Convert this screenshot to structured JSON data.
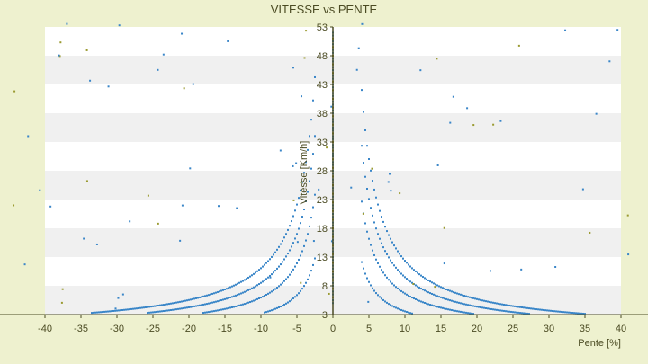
{
  "chart_data": {
    "type": "scatter",
    "title": "VITESSE vs PENTE",
    "xlabel": "Pente [%]",
    "ylabel": "Vitesse [Km/h]",
    "xlim": [
      -40,
      40
    ],
    "ylim": [
      3,
      53
    ],
    "xticks": [
      -40,
      -35,
      -30,
      -25,
      -20,
      -15,
      -10,
      -5,
      0,
      5,
      10,
      15,
      20,
      25,
      30,
      35,
      40
    ],
    "yticks": [
      3,
      8,
      13,
      18,
      23,
      28,
      33,
      38,
      43,
      48,
      53
    ],
    "grid": "horizontal bands",
    "legend": "none",
    "curve_constants": [
      150,
      280,
      400,
      520
    ],
    "colors": {
      "background": "#eef1cf",
      "plot_band_light": "#ffffff",
      "plot_band_dark": "#f0f0f0",
      "series": "#3a86c8",
      "series_alt": "#9a9a30",
      "axis": "#4b4b23",
      "text": "#4b4b23"
    }
  }
}
